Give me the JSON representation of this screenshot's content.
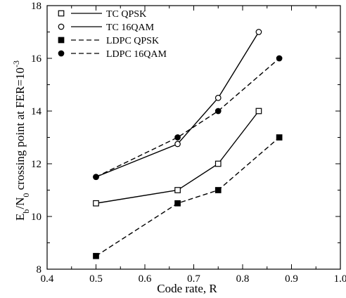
{
  "chart_data": {
    "type": "line",
    "xlabel": "Code rate, R",
    "ylabel_main": "E",
    "ylabel_sub1": "b",
    "ylabel_mid": "/N",
    "ylabel_sub2": "0",
    "ylabel_rest": " crossing point at FER=10",
    "ylabel_sup": "-3",
    "xlim": [
      0.4,
      1.0
    ],
    "ylim": [
      8,
      18
    ],
    "x_ticks": [
      0.4,
      0.5,
      0.6,
      0.7,
      0.8,
      0.9,
      1.0
    ],
    "x_tick_labels": [
      "0.4",
      "0.5",
      "0.6",
      "0.7",
      "0.8",
      "0.9",
      "1.0"
    ],
    "y_ticks": [
      8,
      10,
      12,
      14,
      16,
      18
    ],
    "y_tick_labels": [
      "8",
      "10",
      "12",
      "14",
      "16",
      "18"
    ],
    "legend_position": "top-left",
    "series": [
      {
        "name": "TC QPSK",
        "marker": "square-open",
        "line": "solid",
        "x": [
          0.5,
          0.667,
          0.75,
          0.833
        ],
        "y": [
          10.5,
          11.0,
          12.0,
          14.0
        ]
      },
      {
        "name": "TC 16QAM",
        "marker": "circle-open",
        "line": "solid",
        "x": [
          0.5,
          0.667,
          0.75,
          0.833
        ],
        "y": [
          11.5,
          12.75,
          14.5,
          17.0
        ]
      },
      {
        "name": "LDPC QPSK",
        "marker": "square-filled",
        "line": "dashed",
        "x": [
          0.5,
          0.667,
          0.75,
          0.875
        ],
        "y": [
          8.5,
          10.5,
          11.0,
          13.0
        ]
      },
      {
        "name": "LDPC 16QAM",
        "marker": "circle-filled",
        "line": "dashed",
        "x": [
          0.5,
          0.667,
          0.75,
          0.875
        ],
        "y": [
          11.5,
          13.0,
          14.0,
          16.0
        ]
      }
    ]
  }
}
